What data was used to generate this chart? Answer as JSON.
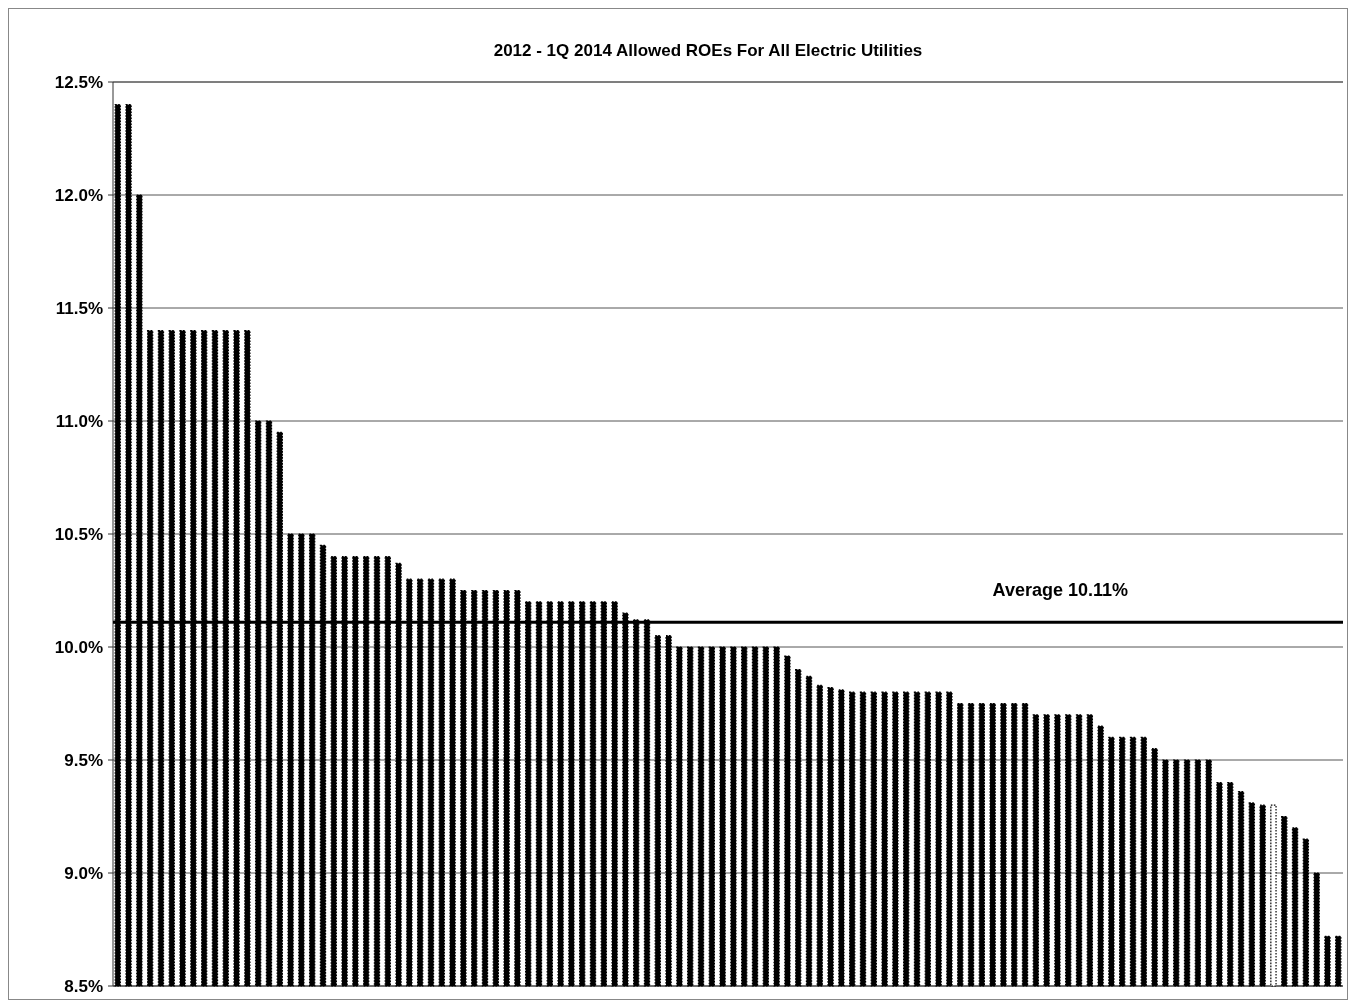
{
  "chart_data": {
    "type": "bar",
    "title": "2012 - 1Q 2014 Allowed ROEs For All Electric Utilities",
    "categories": [
      null,
      null,
      null,
      null,
      null,
      null,
      null,
      null,
      null,
      null,
      null,
      null,
      null,
      null,
      null,
      null,
      null,
      null,
      null,
      null,
      null,
      null,
      null,
      null,
      null,
      null,
      null,
      null,
      null,
      null,
      null,
      null,
      null,
      null,
      null,
      null,
      null,
      null,
      null,
      null,
      null,
      null,
      null,
      null,
      null,
      null,
      null,
      null,
      null,
      null,
      null,
      null,
      null,
      null,
      null,
      null,
      null,
      null,
      null,
      null,
      null,
      null,
      null,
      null,
      null,
      null,
      null,
      null,
      null,
      null,
      null,
      null,
      null,
      null,
      null,
      null,
      null,
      null,
      null,
      null,
      null,
      null,
      null,
      null,
      null,
      null,
      null,
      null,
      null,
      null,
      null,
      null,
      null,
      null,
      null,
      null,
      null,
      null,
      null,
      null,
      null,
      null,
      null,
      null,
      null,
      null,
      null,
      null,
      null,
      null,
      null,
      null,
      null,
      null
    ],
    "values": [
      12.4,
      12.4,
      12.0,
      11.4,
      11.4,
      11.4,
      11.4,
      11.4,
      11.4,
      11.4,
      11.4,
      11.4,
      11.4,
      11.0,
      11.0,
      10.95,
      10.5,
      10.5,
      10.5,
      10.45,
      10.4,
      10.4,
      10.4,
      10.4,
      10.4,
      10.4,
      10.37,
      10.3,
      10.3,
      10.3,
      10.3,
      10.3,
      10.25,
      10.25,
      10.25,
      10.25,
      10.25,
      10.25,
      10.2,
      10.2,
      10.2,
      10.2,
      10.2,
      10.2,
      10.2,
      10.2,
      10.2,
      10.15,
      10.12,
      10.12,
      10.05,
      10.05,
      10.0,
      10.0,
      10.0,
      10.0,
      10.0,
      10.0,
      10.0,
      10.0,
      10.0,
      10.0,
      9.96,
      9.9,
      9.87,
      9.83,
      9.82,
      9.81,
      9.8,
      9.8,
      9.8,
      9.8,
      9.8,
      9.8,
      9.8,
      9.8,
      9.8,
      9.8,
      9.75,
      9.75,
      9.75,
      9.75,
      9.75,
      9.75,
      9.75,
      9.7,
      9.7,
      9.7,
      9.7,
      9.7,
      9.7,
      9.65,
      9.6,
      9.6,
      9.6,
      9.6,
      9.55,
      9.5,
      9.5,
      9.5,
      9.5,
      9.5,
      9.4,
      9.4,
      9.36,
      9.31,
      9.3,
      9.3,
      9.25,
      9.2,
      9.15,
      9.0,
      8.72,
      8.72
    ],
    "colors": [
      "#000000",
      "#000000",
      "#000000",
      "#000000",
      "#000000",
      "#000000",
      "#000000",
      "#000000",
      "#000000",
      "#000000",
      "#000000",
      "#000000",
      "#000000",
      "#000000",
      "#000000",
      "#000000",
      "#000000",
      "#000000",
      "#000000",
      "#000000",
      "#000000",
      "#000000",
      "#000000",
      "#000000",
      "#000000",
      "#000000",
      "#000000",
      "#000000",
      "#000000",
      "#000000",
      "#000000",
      "#000000",
      "#000000",
      "#000000",
      "#000000",
      "#000000",
      "#000000",
      "#000000",
      "#000000",
      "#000000",
      "#000000",
      "#000000",
      "#000000",
      "#000000",
      "#000000",
      "#000000",
      "#000000",
      "#000000",
      "#000000",
      "#000000",
      "#000000",
      "#000000",
      "#000000",
      "#000000",
      "#000000",
      "#000000",
      "#000000",
      "#000000",
      "#000000",
      "#000000",
      "#000000",
      "#000000",
      "#000000",
      "#000000",
      "#000000",
      "#000000",
      "#000000",
      "#000000",
      "#000000",
      "#000000",
      "#000000",
      "#000000",
      "#000000",
      "#000000",
      "#000000",
      "#000000",
      "#000000",
      "#000000",
      "#000000",
      "#000000",
      "#000000",
      "#000000",
      "#000000",
      "#000000",
      "#000000",
      "#000000",
      "#000000",
      "#000000",
      "#000000",
      "#000000",
      "#000000",
      "#000000",
      "#000000",
      "#000000",
      "#000000",
      "#000000",
      "#000000",
      "#000000",
      "#000000",
      "#000000",
      "#000000",
      "#000000",
      "#000000",
      "#000000",
      "#000000",
      "#000000",
      "#000000",
      "#ffffff",
      "#000000",
      "#000000",
      "#000000",
      "#000000",
      "#000000",
      "#000000"
    ],
    "ylim": [
      8.5,
      12.5
    ],
    "yticks": [
      {
        "value": 8.5,
        "label": "8.5%"
      },
      {
        "value": 9.0,
        "label": "9.0%"
      },
      {
        "value": 9.5,
        "label": "9.5%"
      },
      {
        "value": 10.0,
        "label": "10.0%"
      },
      {
        "value": 10.5,
        "label": "10.5%"
      },
      {
        "value": 11.0,
        "label": "11.0%"
      },
      {
        "value": 11.5,
        "label": "11.5%"
      },
      {
        "value": 12.0,
        "label": "12.0%"
      },
      {
        "value": 12.5,
        "label": "12.5%"
      }
    ],
    "grid": "y",
    "ref_lines": [
      {
        "axis": "y",
        "value": 10.11,
        "label": "Average 10.11%",
        "color": "#000000"
      }
    ]
  }
}
